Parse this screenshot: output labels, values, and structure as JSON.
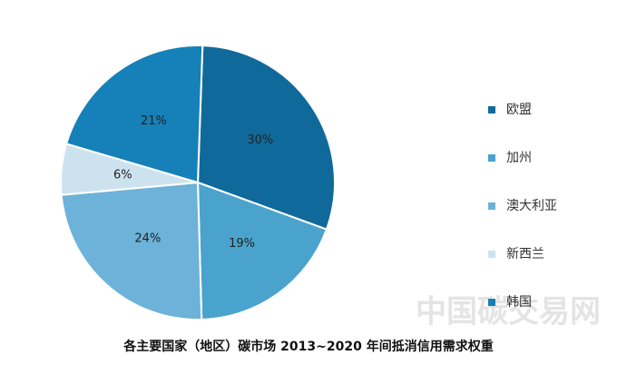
{
  "chart_data": {
    "type": "pie",
    "title": "各主要国家（地区）碳市场 2013~2020 年间抵消信用需求权重",
    "categories": [
      "欧盟",
      "加州",
      "澳大利亚",
      "新西兰",
      "韩国"
    ],
    "values": [
      30,
      19,
      24,
      6,
      21
    ],
    "value_labels": [
      "30%",
      "19%",
      "24%",
      "6%",
      "21%"
    ],
    "colors": [
      "#0f6a9b",
      "#4aa3cd",
      "#6db2d8",
      "#cde2ef",
      "#1680b8"
    ],
    "legend": "right",
    "watermark": "中国碳交易网"
  }
}
